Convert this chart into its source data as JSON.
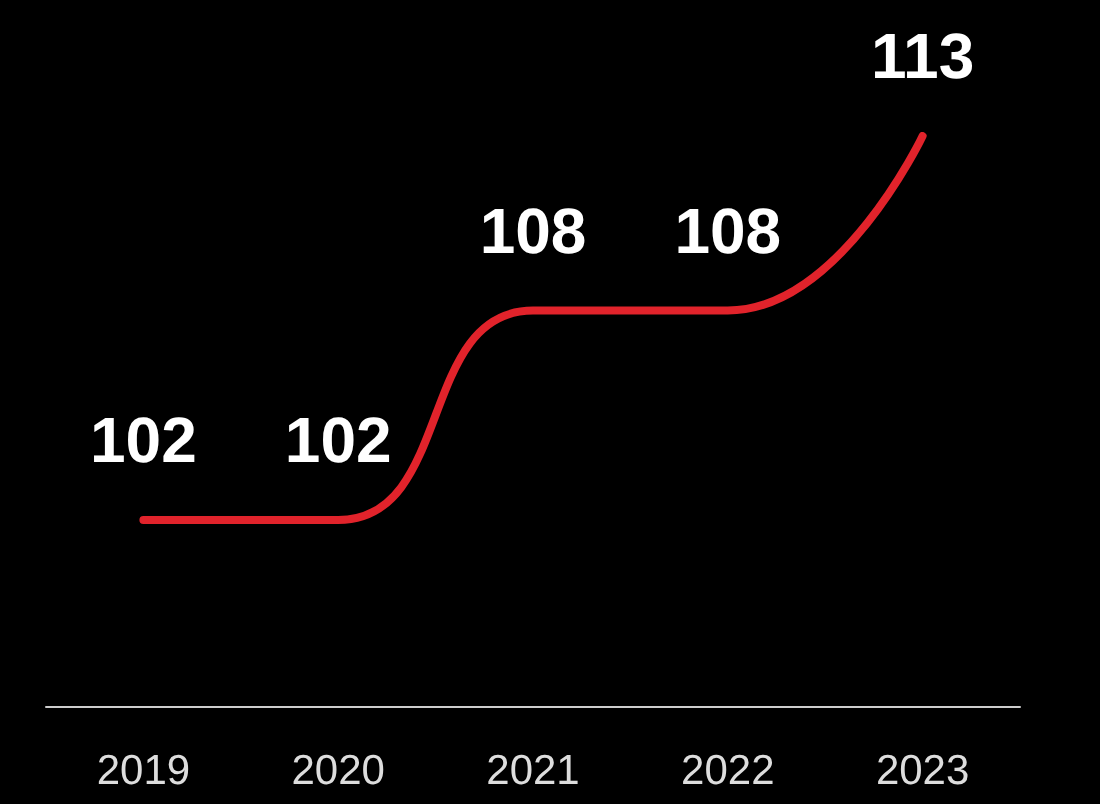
{
  "chart_data": {
    "type": "line",
    "categories": [
      "2019",
      "2020",
      "2021",
      "2022",
      "2023"
    ],
    "series": [
      {
        "color": "#e1232b",
        "values": [
          102,
          102,
          108,
          108,
          113
        ]
      }
    ],
    "data_labels": true,
    "grid": false,
    "marker": "none",
    "line_style": "solid",
    "tick_labels": "x"
  }
}
